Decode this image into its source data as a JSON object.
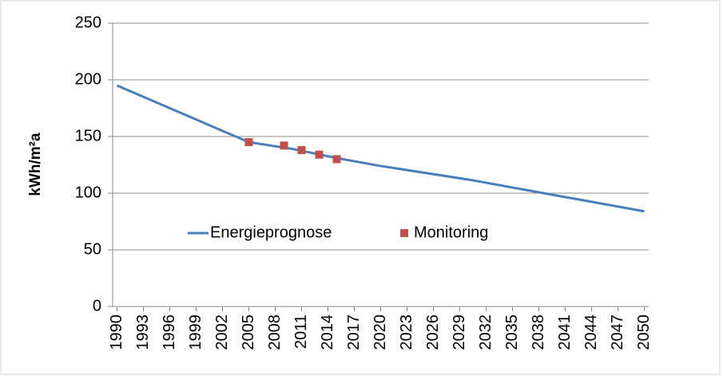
{
  "chart_data": {
    "type": "line",
    "ylabel": "kWh/m²a",
    "xlim": [
      1989.5,
      2050.5
    ],
    "xticks": [
      1990,
      1993,
      1996,
      1999,
      2002,
      2005,
      2008,
      2011,
      2014,
      2017,
      2020,
      2023,
      2026,
      2029,
      2032,
      2035,
      2038,
      2041,
      2044,
      2047,
      2050
    ],
    "ylim": [
      0,
      250
    ],
    "yticks": [
      0,
      50,
      100,
      150,
      200,
      250
    ],
    "grid": true,
    "series": [
      {
        "name": "Energieprognose",
        "color": "#4a7ebb",
        "kind": "line",
        "x": [
          1990,
          2005,
          2010,
          2015,
          2020,
          2030,
          2040,
          2050
        ],
        "values": [
          195,
          145,
          139,
          131,
          124,
          112,
          98,
          84
        ]
      },
      {
        "name": "Monitoring",
        "color": "#c0504d",
        "kind": "marker",
        "x": [
          2005,
          2009,
          2011,
          2013,
          2015
        ],
        "values": [
          145,
          142,
          138,
          134,
          130
        ]
      }
    ]
  }
}
